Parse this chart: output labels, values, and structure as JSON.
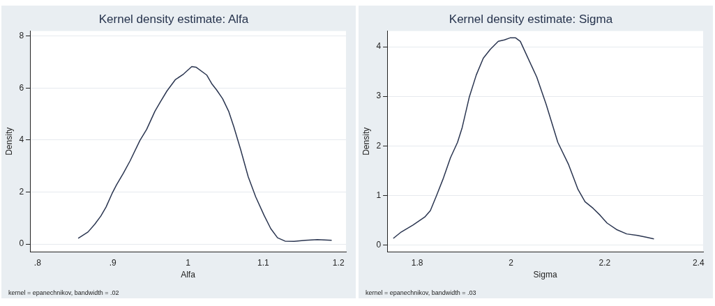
{
  "chart_data": [
    {
      "type": "line",
      "title": "Kernel density estimate: Alfa",
      "xlabel": "Alfa",
      "ylabel": "Density",
      "annotations": [
        "kernel = epanechnikov, bandwidth = .02"
      ],
      "color": "#2a3550",
      "grid": "y",
      "marker": "none",
      "xlim": [
        0.79,
        1.21
      ],
      "xticks": [
        {
          "value": 0.8,
          "label": ".8"
        },
        {
          "value": 0.9,
          "label": ".9"
        },
        1,
        1.1,
        1.2
      ],
      "ylim": [
        -0.3,
        8.2
      ],
      "yticks": [
        0,
        2,
        4,
        6,
        8
      ],
      "x": [
        0.854,
        0.867,
        0.876,
        0.884,
        0.891,
        0.899,
        0.905,
        0.914,
        0.923,
        0.936,
        0.945,
        0.956,
        0.963,
        0.972,
        0.983,
        0.994,
        1.005,
        1.011,
        1.025,
        1.032,
        1.038,
        1.046,
        1.054,
        1.061,
        1.07,
        1.08,
        1.09,
        1.101,
        1.11,
        1.119,
        1.129,
        1.141,
        1.156,
        1.172,
        1.191
      ],
      "values": [
        0.22,
        0.46,
        0.76,
        1.07,
        1.42,
        1.94,
        2.28,
        2.72,
        3.2,
        3.98,
        4.41,
        5.11,
        5.46,
        5.89,
        6.32,
        6.54,
        6.83,
        6.8,
        6.5,
        6.15,
        5.93,
        5.59,
        5.11,
        4.5,
        3.63,
        2.59,
        1.81,
        1.11,
        0.59,
        0.24,
        0.11,
        0.1,
        0.14,
        0.17,
        0.14
      ]
    },
    {
      "type": "line",
      "title": "Kernel density estimate: Sigma",
      "xlabel": "Sigma",
      "ylabel": "Density",
      "annotations": [
        "kernel = epanechnikov, bandwidth = .03"
      ],
      "color": "#2a3550",
      "grid": "y",
      "marker": "none",
      "xlim": [
        1.736,
        2.41
      ],
      "xticks": [
        1.8,
        2,
        2.2,
        2.4
      ],
      "ylim": [
        -0.14,
        4.32
      ],
      "yticks": [
        0,
        1,
        2,
        3,
        4
      ],
      "x": [
        1.749,
        1.766,
        1.791,
        1.816,
        1.828,
        1.841,
        1.856,
        1.871,
        1.886,
        1.896,
        1.911,
        1.926,
        1.941,
        1.956,
        1.973,
        1.986,
        1.998,
        2.01,
        2.02,
        2.035,
        2.055,
        2.075,
        2.1,
        2.123,
        2.143,
        2.158,
        2.175,
        2.19,
        2.205,
        2.225,
        2.247,
        2.27,
        2.29,
        2.305
      ],
      "values": [
        0.13,
        0.26,
        0.4,
        0.56,
        0.69,
        0.99,
        1.35,
        1.76,
        2.07,
        2.37,
        2.98,
        3.43,
        3.77,
        3.95,
        4.11,
        4.14,
        4.18,
        4.18,
        4.11,
        3.8,
        3.39,
        2.84,
        2.07,
        1.62,
        1.12,
        0.87,
        0.74,
        0.6,
        0.44,
        0.31,
        0.22,
        0.19,
        0.15,
        0.12
      ]
    }
  ]
}
